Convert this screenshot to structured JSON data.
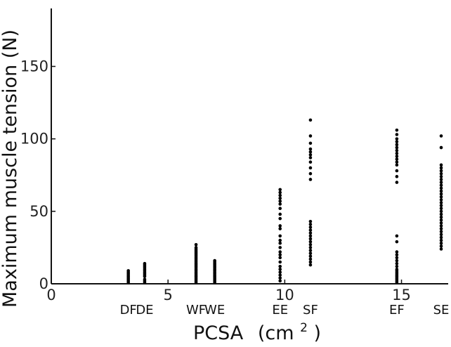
{
  "chart_data": {
    "type": "scatter",
    "title": "",
    "xlabel_main": "PCSA",
    "xlabel_unit_base": "(cm",
    "xlabel_unit_sup": "2",
    "xlabel_unit_close": ")",
    "ylabel": "Maximum muscle tension  (N)",
    "xlim": [
      0,
      17
    ],
    "ylim": [
      0,
      190
    ],
    "xticks": [
      0,
      5,
      10,
      15
    ],
    "yticks": [
      0,
      50,
      100,
      150
    ],
    "xtick_labels": [
      "0",
      "5",
      "10",
      "15"
    ],
    "ytick_labels": [
      "0",
      "50",
      "100",
      "150"
    ],
    "point_color": "#000000",
    "series": [
      {
        "name": "DF",
        "x": 3.3,
        "y": [
          1,
          2,
          3,
          4,
          5,
          6,
          7,
          8,
          9
        ]
      },
      {
        "name": "DE",
        "x": 4.0,
        "y": [
          1,
          2,
          3,
          5,
          6,
          7,
          8,
          9,
          10,
          11,
          12,
          13,
          14
        ]
      },
      {
        "name": "WF",
        "x": 6.2,
        "y": [
          1,
          2,
          3,
          4,
          5,
          6,
          7,
          8,
          9,
          10,
          11,
          12,
          13,
          14,
          15,
          16,
          17,
          18,
          19,
          20,
          21,
          22,
          23,
          24,
          25,
          27
        ]
      },
      {
        "name": "WE",
        "x": 7.0,
        "y": [
          1,
          2,
          3,
          4,
          5,
          6,
          7,
          8,
          9,
          10,
          11,
          12,
          13,
          14,
          15,
          16
        ]
      },
      {
        "name": "EE",
        "x": 9.8,
        "y": [
          2,
          4,
          6,
          8,
          10,
          12,
          15,
          18,
          20,
          22,
          25,
          28,
          30,
          33,
          38,
          40,
          45,
          48,
          52,
          55,
          57,
          59,
          61,
          63,
          65
        ]
      },
      {
        "name": "SF",
        "x": 11.1,
        "y": [
          13,
          15,
          17,
          19,
          21,
          23,
          25,
          27,
          29,
          31,
          33,
          35,
          37,
          39,
          41,
          43,
          72,
          76,
          80,
          84,
          87,
          89,
          91,
          93,
          97,
          102,
          113
        ]
      },
      {
        "name": "EF",
        "x": 14.8,
        "y": [
          1,
          2,
          3,
          4,
          5,
          6,
          7,
          8,
          9,
          10,
          12,
          14,
          16,
          18,
          20,
          22,
          29,
          33,
          70,
          74,
          78,
          82,
          84,
          86,
          88,
          90,
          92,
          94,
          96,
          98,
          100,
          103,
          106
        ]
      },
      {
        "name": "SE",
        "x": 16.7,
        "y": [
          24,
          26,
          28,
          30,
          32,
          34,
          36,
          38,
          40,
          42,
          44,
          46,
          48,
          50,
          52,
          54,
          56,
          58,
          60,
          62,
          64,
          66,
          68,
          70,
          72,
          74,
          76,
          78,
          80,
          82,
          94,
          102
        ]
      }
    ]
  }
}
